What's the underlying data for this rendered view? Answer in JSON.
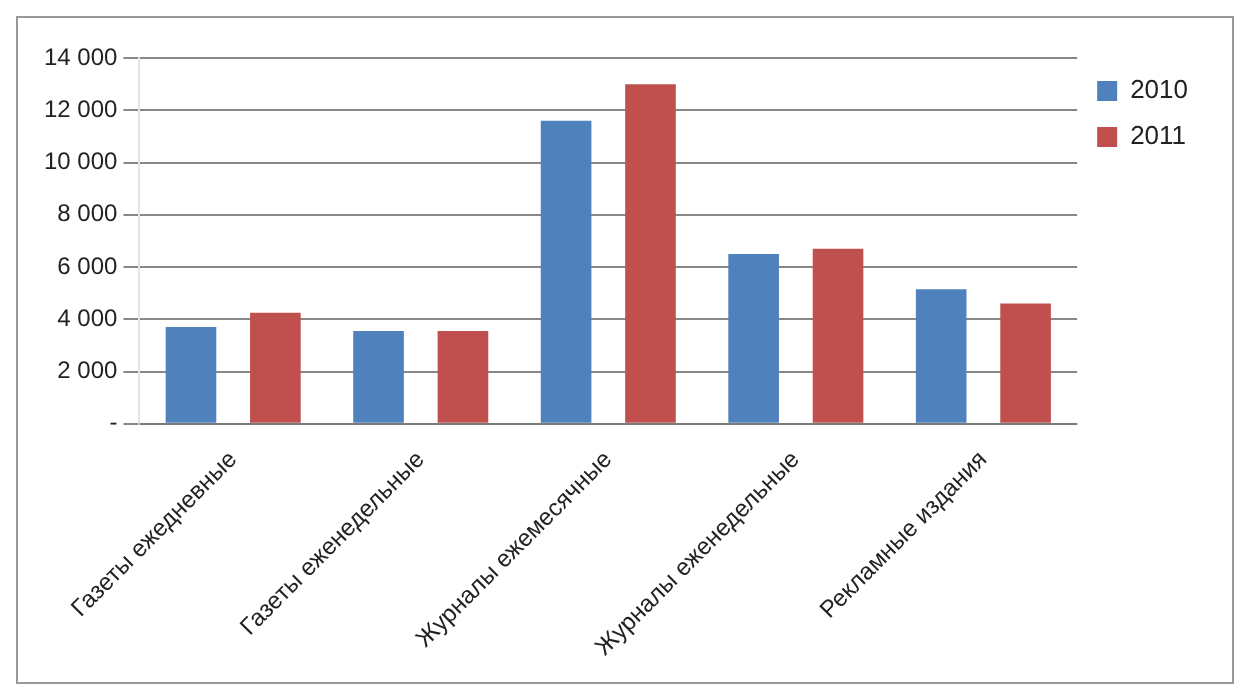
{
  "chart_data": {
    "type": "bar",
    "categories": [
      "Газеты ежедневные",
      "Газеты еженедельные",
      "Журналы ежемесячные",
      "Журналы еженедельные",
      "Рекламные издания"
    ],
    "series": [
      {
        "name": "2010",
        "color": "#4f81bd",
        "values": [
          3700,
          3550,
          11600,
          6500,
          5150
        ]
      },
      {
        "name": "2011",
        "color": "#c0504d",
        "values": [
          4250,
          3550,
          13000,
          6700,
          4600
        ]
      }
    ],
    "ylim": [
      0,
      14000
    ],
    "yticks": [
      {
        "value": 0,
        "label": "-"
      },
      {
        "value": 2000,
        "label": "2 000"
      },
      {
        "value": 4000,
        "label": "4 000"
      },
      {
        "value": 6000,
        "label": "6 000"
      },
      {
        "value": 8000,
        "label": "8 000"
      },
      {
        "value": 10000,
        "label": "10 000"
      },
      {
        "value": 12000,
        "label": "12 000"
      },
      {
        "value": 14000,
        "label": "14 000"
      }
    ],
    "grid": "y",
    "legend": "top right"
  }
}
